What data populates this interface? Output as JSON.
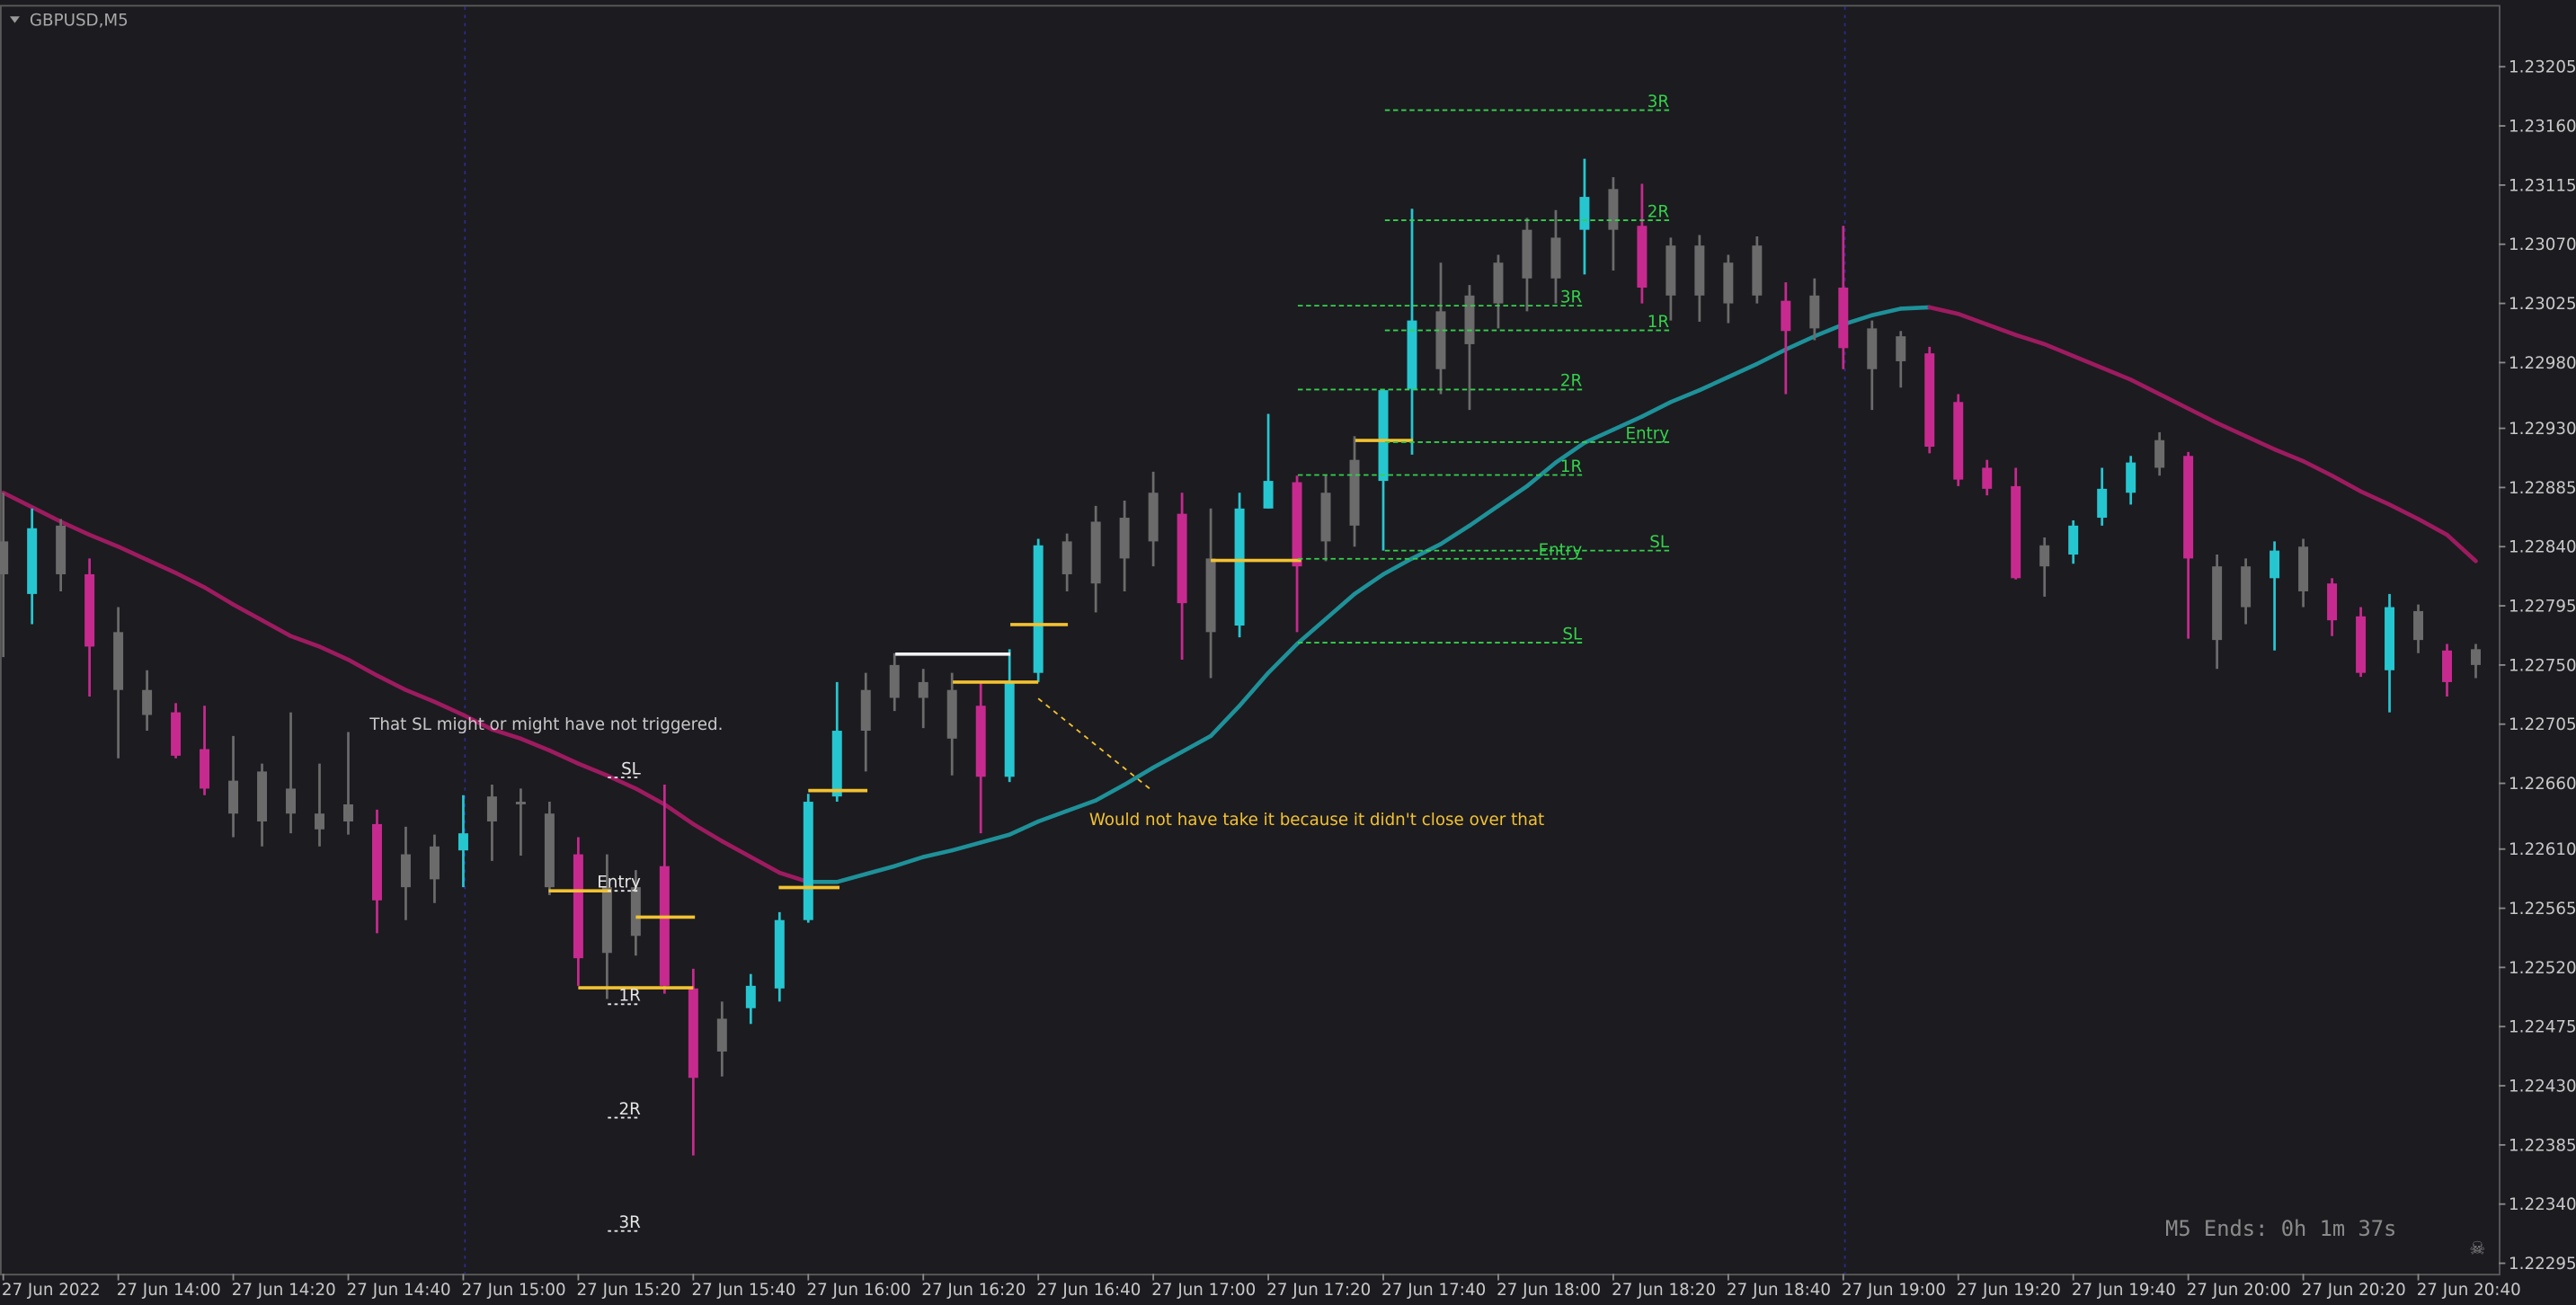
{
  "header": {
    "symbol": "GBPUSD,M5"
  },
  "timer": "M5 Ends: 0h 1m 37s",
  "chart_data": {
    "type": "candlestick",
    "categories": [
      "27 Jun 2022",
      null,
      null,
      null,
      "27 Jun 14:00",
      null,
      null,
      null,
      "27 Jun 14:20",
      null,
      null,
      null,
      "27 Jun 14:40",
      null,
      null,
      null,
      "27 Jun 15:00",
      null,
      null,
      null,
      "27 Jun 15:20",
      null,
      null,
      null,
      "27 Jun 15:40",
      null,
      null,
      null,
      "27 Jun 16:00",
      null,
      null,
      null,
      "27 Jun 16:20",
      null,
      null,
      null,
      "27 Jun 16:40",
      null,
      null,
      null,
      "27 Jun 17:00",
      null,
      null,
      null,
      "27 Jun 17:20",
      null,
      null,
      null,
      "27 Jun 17:40",
      null,
      null,
      null,
      "27 Jun 18:00",
      null,
      null,
      null,
      "27 Jun 18:20",
      null,
      null,
      null,
      "27 Jun 18:40",
      null,
      null,
      null,
      "27 Jun 19:00",
      null,
      null,
      null,
      "27 Jun 19:20",
      null,
      null,
      null,
      "27 Jun 19:40",
      null,
      null,
      null,
      "27 Jun 20:00",
      null,
      null,
      null,
      "27 Jun 20:20",
      null,
      null,
      null,
      "27 Jun 20:40",
      null,
      null
    ],
    "open": [
      1.22844,
      1.22804,
      1.22856,
      1.22819,
      1.22775,
      1.22731,
      1.22714,
      1.22686,
      1.22662,
      1.22669,
      1.22656,
      1.22637,
      1.22644,
      1.22629,
      1.22606,
      1.22612,
      1.22609,
      1.2265,
      1.22646,
      1.22637,
      1.22606,
      1.22581,
      1.22581,
      1.22597,
      1.22504,
      1.22481,
      1.22489,
      1.22504,
      1.22556,
      1.2265,
      1.22731,
      1.2275,
      1.22737,
      1.22731,
      1.22719,
      1.22665,
      1.22744,
      1.22844,
      1.22859,
      1.22862,
      1.22881,
      1.22865,
      1.22831,
      1.2278,
      1.22869,
      1.22889,
      1.22881,
      1.22906,
      1.2289,
      1.2296,
      1.23019,
      1.23031,
      1.23056,
      1.23081,
      1.23075,
      1.23081,
      1.23112,
      1.23084,
      1.23069,
      1.23069,
      1.23056,
      1.23069,
      1.23027,
      1.23031,
      1.23037,
      1.23006,
      1.23,
      1.22987,
      1.2295,
      1.229,
      1.22886,
      1.22841,
      1.22834,
      1.22862,
      1.22881,
      1.22921,
      1.22909,
      1.22825,
      1.22825,
      1.22816,
      1.2284,
      1.22812,
      1.22787,
      1.22746,
      1.22791,
      1.22761,
      1.22762
    ],
    "high": [
      1.22881,
      1.22869,
      1.22861,
      1.22831,
      1.22794,
      1.22746,
      1.22721,
      1.22719,
      1.22696,
      1.22675,
      1.22714,
      1.22675,
      1.22699,
      1.2264,
      1.22627,
      1.22621,
      1.22651,
      1.22659,
      1.22656,
      1.22646,
      1.22619,
      1.22606,
      1.22594,
      1.22659,
      1.22519,
      1.22494,
      1.22515,
      1.22562,
      1.22652,
      1.22737,
      1.22744,
      1.22759,
      1.22747,
      1.22744,
      1.22736,
      1.22762,
      1.22846,
      1.2285,
      1.22871,
      1.22875,
      1.22897,
      1.22881,
      1.22869,
      1.22881,
      1.22941,
      1.22894,
      1.22894,
      1.22924,
      1.2296,
      1.23097,
      1.23056,
      1.23039,
      1.23062,
      1.2309,
      1.23096,
      1.23135,
      1.23121,
      1.23116,
      1.23075,
      1.23077,
      1.23062,
      1.23076,
      1.23041,
      1.23044,
      1.23084,
      1.23012,
      1.23004,
      1.22992,
      1.22956,
      1.22906,
      1.229,
      1.22847,
      1.2286,
      1.229,
      1.22909,
      1.22927,
      1.22912,
      1.22834,
      1.22831,
      1.22844,
      1.22846,
      1.22816,
      1.22794,
      1.22804,
      1.22796,
      1.22766,
      1.22766
    ],
    "low": [
      1.22756,
      1.22781,
      1.22806,
      1.22726,
      1.22679,
      1.227,
      1.22679,
      1.22651,
      1.22619,
      1.22612,
      1.22622,
      1.22612,
      1.22621,
      1.22546,
      1.22556,
      1.22569,
      1.22581,
      1.22601,
      1.22605,
      1.22575,
      1.22506,
      1.22496,
      1.22529,
      1.225,
      1.22377,
      1.22437,
      1.22477,
      1.22494,
      1.22554,
      1.22646,
      1.22669,
      1.22715,
      1.22702,
      1.22666,
      1.22622,
      1.22661,
      1.22737,
      1.22806,
      1.2279,
      1.22806,
      1.22825,
      1.22754,
      1.2274,
      1.22771,
      1.22869,
      1.22775,
      1.22829,
      1.2284,
      1.22837,
      1.2291,
      1.22956,
      1.22944,
      1.23006,
      1.23019,
      1.23025,
      1.23047,
      1.2305,
      1.23025,
      1.23012,
      1.23011,
      1.2301,
      1.23025,
      1.22956,
      1.22997,
      1.22975,
      1.22944,
      1.22961,
      1.22911,
      1.22886,
      1.22879,
      1.22815,
      1.22802,
      1.22827,
      1.22856,
      1.22872,
      1.22894,
      1.2277,
      1.22747,
      1.22781,
      1.22761,
      1.22794,
      1.22772,
      1.22741,
      1.22714,
      1.22759,
      1.22726,
      1.2274
    ],
    "close": [
      1.22819,
      1.22854,
      1.22819,
      1.22764,
      1.22731,
      1.22712,
      1.22681,
      1.22656,
      1.22637,
      1.22631,
      1.22637,
      1.22625,
      1.22631,
      1.22571,
      1.22581,
      1.22587,
      1.22622,
      1.22631,
      1.22644,
      1.22581,
      1.22527,
      1.22531,
      1.22544,
      1.22506,
      1.22436,
      1.22456,
      1.22506,
      1.22556,
      1.22646,
      1.227,
      1.227,
      1.22725,
      1.22725,
      1.22694,
      1.22665,
      1.22737,
      1.22841,
      1.22819,
      1.22812,
      1.22831,
      1.22844,
      1.22797,
      1.22775,
      1.22869,
      1.2289,
      1.22825,
      1.22844,
      1.22856,
      1.22959,
      1.23012,
      1.22975,
      1.22994,
      1.23025,
      1.23044,
      1.23044,
      1.23106,
      1.23081,
      1.23037,
      1.23031,
      1.23031,
      1.23025,
      1.23031,
      1.23004,
      1.23006,
      1.22991,
      1.22975,
      1.22981,
      1.22916,
      1.22891,
      1.22884,
      1.22816,
      1.22825,
      1.22856,
      1.22884,
      1.22904,
      1.229,
      1.22831,
      1.22769,
      1.22794,
      1.22837,
      1.22806,
      1.22784,
      1.22744,
      1.22794,
      1.22769,
      1.22737,
      1.2275
    ],
    "candle_colors": [
      "#6b6b6b",
      "#26c6d0",
      "#6b6b6b",
      "#c72a8f",
      "#6b6b6b",
      "#6b6b6b",
      "#c72a8f",
      "#c72a8f",
      "#6b6b6b",
      "#6b6b6b",
      "#6b6b6b",
      "#6b6b6b",
      "#6b6b6b",
      "#c72a8f",
      "#6b6b6b",
      "#6b6b6b",
      "#26c6d0",
      "#6b6b6b",
      "#6b6b6b",
      "#6b6b6b",
      "#c72a8f",
      "#6b6b6b",
      "#6b6b6b",
      "#c72a8f",
      "#c72a8f",
      "#6b6b6b",
      "#26c6d0",
      "#26c6d0",
      "#26c6d0",
      "#26c6d0",
      "#6b6b6b",
      "#6b6b6b",
      "#6b6b6b",
      "#6b6b6b",
      "#c72a8f",
      "#26c6d0",
      "#26c6d0",
      "#6b6b6b",
      "#6b6b6b",
      "#6b6b6b",
      "#6b6b6b",
      "#c72a8f",
      "#6b6b6b",
      "#26c6d0",
      "#26c6d0",
      "#c72a8f",
      "#6b6b6b",
      "#6b6b6b",
      "#26c6d0",
      "#26c6d0",
      "#6b6b6b",
      "#6b6b6b",
      "#6b6b6b",
      "#6b6b6b",
      "#6b6b6b",
      "#26c6d0",
      "#6b6b6b",
      "#c72a8f",
      "#6b6b6b",
      "#6b6b6b",
      "#6b6b6b",
      "#6b6b6b",
      "#c72a8f",
      "#6b6b6b",
      "#c72a8f",
      "#6b6b6b",
      "#6b6b6b",
      "#c72a8f",
      "#c72a8f",
      "#c72a8f",
      "#c72a8f",
      "#6b6b6b",
      "#26c6d0",
      "#26c6d0",
      "#26c6d0",
      "#6b6b6b",
      "#c72a8f",
      "#6b6b6b",
      "#6b6b6b",
      "#26c6d0",
      "#6b6b6b",
      "#c72a8f",
      "#c72a8f",
      "#26c6d0",
      "#6b6b6b",
      "#c72a8f",
      "#6b6b6b"
    ],
    "moving_average": {
      "values": [
        1.22881,
        1.2287,
        1.22859,
        1.22849,
        1.2284,
        1.2283,
        1.2282,
        1.22809,
        1.22796,
        1.22784,
        1.22772,
        1.22764,
        1.22754,
        1.22742,
        1.22731,
        1.22722,
        1.22712,
        1.22701,
        1.22694,
        1.22685,
        1.22675,
        1.22666,
        1.22656,
        1.22644,
        1.22629,
        1.22616,
        1.22604,
        1.22592,
        1.22585,
        1.22585,
        1.22591,
        1.22597,
        1.22604,
        1.22609,
        1.22615,
        1.22621,
        1.22631,
        1.22639,
        1.22647,
        1.22659,
        1.22672,
        1.22684,
        1.22696,
        1.22719,
        1.22744,
        1.22766,
        1.22785,
        1.22804,
        1.22819,
        1.22831,
        1.22842,
        1.22856,
        1.22871,
        1.22886,
        1.22904,
        1.22919,
        1.22929,
        1.22939,
        1.2295,
        1.22959,
        1.22969,
        1.22979,
        1.2299,
        1.23,
        1.23009,
        1.23016,
        1.23021,
        1.23022,
        1.23017,
        1.23009,
        1.23001,
        1.22994,
        1.22985,
        1.22976,
        1.22967,
        1.22956,
        1.22945,
        1.22934,
        1.22924,
        1.22914,
        1.22905,
        1.22894,
        1.22882,
        1.22872,
        1.22861,
        1.22849,
        1.22829
      ],
      "up_color": "#1e9199",
      "down_color": "#9e1b60"
    },
    "ylim": [
      1.22287,
      1.23252
    ],
    "yticks": [
      1.22295,
      {
        "value": 1.2234,
        "label": "1.22340"
      },
      1.22385,
      {
        "value": 1.2243,
        "label": "1.22430"
      },
      1.22475,
      {
        "value": 1.2252,
        "label": "1.22520"
      },
      1.22565,
      {
        "value": 1.2261,
        "label": "1.22610"
      },
      {
        "value": 1.2266,
        "label": "1.22660"
      },
      1.22705,
      {
        "value": 1.2275,
        "label": "1.22750"
      },
      1.22795,
      {
        "value": 1.2284,
        "label": "1.22840"
      },
      1.22885,
      {
        "value": 1.2293,
        "label": "1.22930"
      },
      {
        "value": 1.2298,
        "label": "1.22980"
      },
      1.23025,
      {
        "value": 1.2307,
        "label": "1.23070"
      },
      1.23115,
      {
        "value": 1.2316,
        "label": "1.23160"
      },
      1.23205
    ],
    "annotations": {
      "sl_note": "That SL might or might have not triggered.",
      "close_note": "Would not have take it because it didn't close over that",
      "level_sets": [
        [
          "SL",
          "Entry",
          "1R",
          "2R",
          "3R"
        ],
        [
          "3R",
          "2R",
          "1R",
          "Entry",
          "SL"
        ],
        [
          "3R",
          "2R",
          "1R",
          "Entry",
          "SL"
        ]
      ]
    }
  }
}
